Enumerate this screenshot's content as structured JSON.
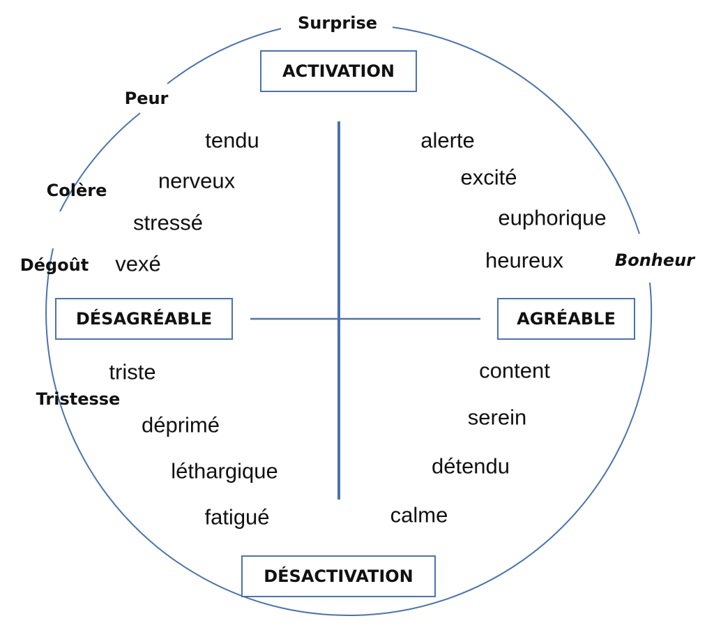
{
  "colors": {
    "line": "#4a72b0",
    "text": "#111111",
    "background": "#ffffff"
  },
  "axes": {
    "top": "ACTIVATION",
    "bottom": "DÉSACTIVATION",
    "left": "DÉSAGRÉABLE",
    "right": "AGRÉABLE"
  },
  "emotions": {
    "surprise": "Surprise",
    "peur": "Peur",
    "colere": "Colère",
    "degout": "Dégoût",
    "tristesse": "Tristesse",
    "bonheur": "Bonheur"
  },
  "quadrants": {
    "top_left": [
      "tendu",
      "nerveux",
      "stressé",
      "vexé"
    ],
    "top_right": [
      "alerte",
      "excité",
      "euphorique",
      "heureux"
    ],
    "bottom_left": [
      "triste",
      "déprimé",
      "léthargique",
      "fatigué"
    ],
    "bottom_right": [
      "content",
      "serein",
      "détendu",
      "calme"
    ]
  }
}
